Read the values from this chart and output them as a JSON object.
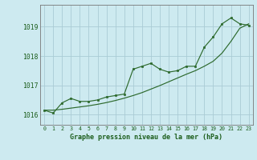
{
  "x": [
    0,
    1,
    2,
    3,
    4,
    5,
    6,
    7,
    8,
    9,
    10,
    11,
    12,
    13,
    14,
    15,
    16,
    17,
    18,
    19,
    20,
    21,
    22,
    23
  ],
  "y_main": [
    1016.15,
    1016.05,
    1016.4,
    1016.55,
    1016.45,
    1016.45,
    1016.5,
    1016.6,
    1016.65,
    1016.7,
    1017.55,
    1017.65,
    1017.75,
    1017.55,
    1017.45,
    1017.5,
    1017.65,
    1017.65,
    1018.3,
    1018.65,
    1019.1,
    1019.3,
    1019.1,
    1019.05
  ],
  "y_trend": [
    1016.15,
    1016.15,
    1016.18,
    1016.22,
    1016.26,
    1016.3,
    1016.35,
    1016.41,
    1016.48,
    1016.56,
    1016.65,
    1016.75,
    1016.87,
    1016.99,
    1017.12,
    1017.25,
    1017.38,
    1017.5,
    1017.65,
    1017.82,
    1018.1,
    1018.5,
    1018.95,
    1019.1
  ],
  "line_color": "#2d6a2d",
  "bg_color": "#cdeaf0",
  "grid_color": "#aaccd5",
  "xlabel": "Graphe pression niveau de la mer (hPa)",
  "ytick_labels": [
    "1016",
    "1017",
    "1018",
    "1019"
  ],
  "yticks": [
    1016,
    1017,
    1018,
    1019
  ],
  "ylim": [
    1015.65,
    1019.75
  ],
  "xlim": [
    -0.5,
    23.5
  ]
}
